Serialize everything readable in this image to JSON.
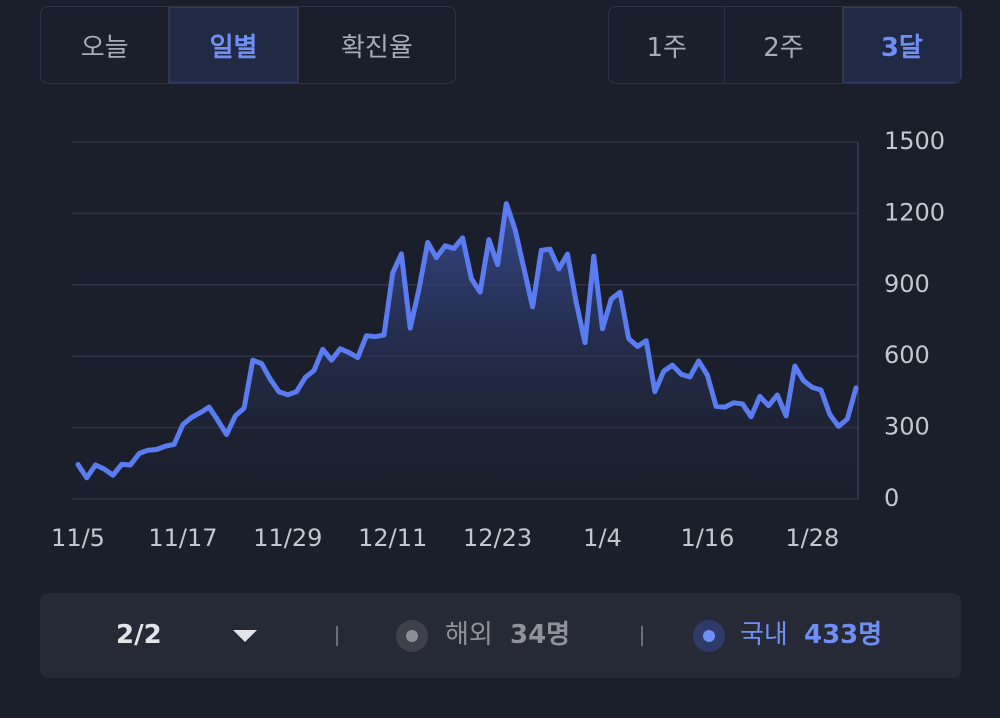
{
  "tabs": {
    "view": [
      "오늘",
      "일별",
      "확진율"
    ],
    "period": [
      "1주",
      "2주",
      "3달"
    ]
  },
  "chart_data": {
    "type": "area",
    "color": "#5b7cf0",
    "categories": [
      "11/5",
      null,
      null,
      null,
      null,
      null,
      null,
      null,
      null,
      null,
      null,
      null,
      "11/17",
      null,
      null,
      null,
      null,
      null,
      null,
      null,
      null,
      null,
      null,
      null,
      "11/29",
      null,
      null,
      null,
      null,
      null,
      null,
      null,
      null,
      null,
      null,
      null,
      "12/11",
      null,
      null,
      null,
      null,
      null,
      null,
      null,
      null,
      null,
      null,
      null,
      "12/23",
      null,
      null,
      null,
      null,
      null,
      null,
      null,
      null,
      null,
      null,
      null,
      "1/4",
      null,
      null,
      null,
      null,
      null,
      null,
      null,
      null,
      null,
      null,
      null,
      "1/16",
      null,
      null,
      null,
      null,
      null,
      null,
      null,
      null,
      null,
      null,
      null,
      "1/28",
      null,
      null,
      null,
      null,
      null
    ],
    "values": [
      145,
      89,
      143,
      126,
      100,
      146,
      143,
      191,
      205,
      208,
      222,
      230,
      313,
      343,
      363,
      386,
      330,
      271,
      349,
      382,
      583,
      569,
      503,
      450,
      438,
      451,
      511,
      540,
      629,
      583,
      631,
      615,
      594,
      686,
      682,
      689,
      950,
      1030,
      718,
      880,
      1078,
      1014,
      1064,
      1053,
      1097,
      926,
      869,
      1090,
      985,
      1241,
      1132,
      970,
      807,
      1045,
      1050,
      967,
      1029,
      824,
      657,
      1020,
      715,
      840,
      869,
      674,
      641,
      665,
      451,
      537,
      562,
      524,
      513,
      580,
      520,
      389,
      386,
      404,
      400,
      346,
      431,
      392,
      437,
      349,
      559,
      497,
      469,
      458,
      355,
      305,
      336,
      467
    ],
    "ylim": [
      0,
      1500
    ],
    "yticks": [
      0,
      300,
      600,
      900,
      1200,
      1500
    ],
    "grid": true
  },
  "footer": {
    "date": "2/2",
    "overseas": {
      "label": "해외",
      "value": "34명"
    },
    "domestic": {
      "label": "국내",
      "value": "433명"
    }
  }
}
